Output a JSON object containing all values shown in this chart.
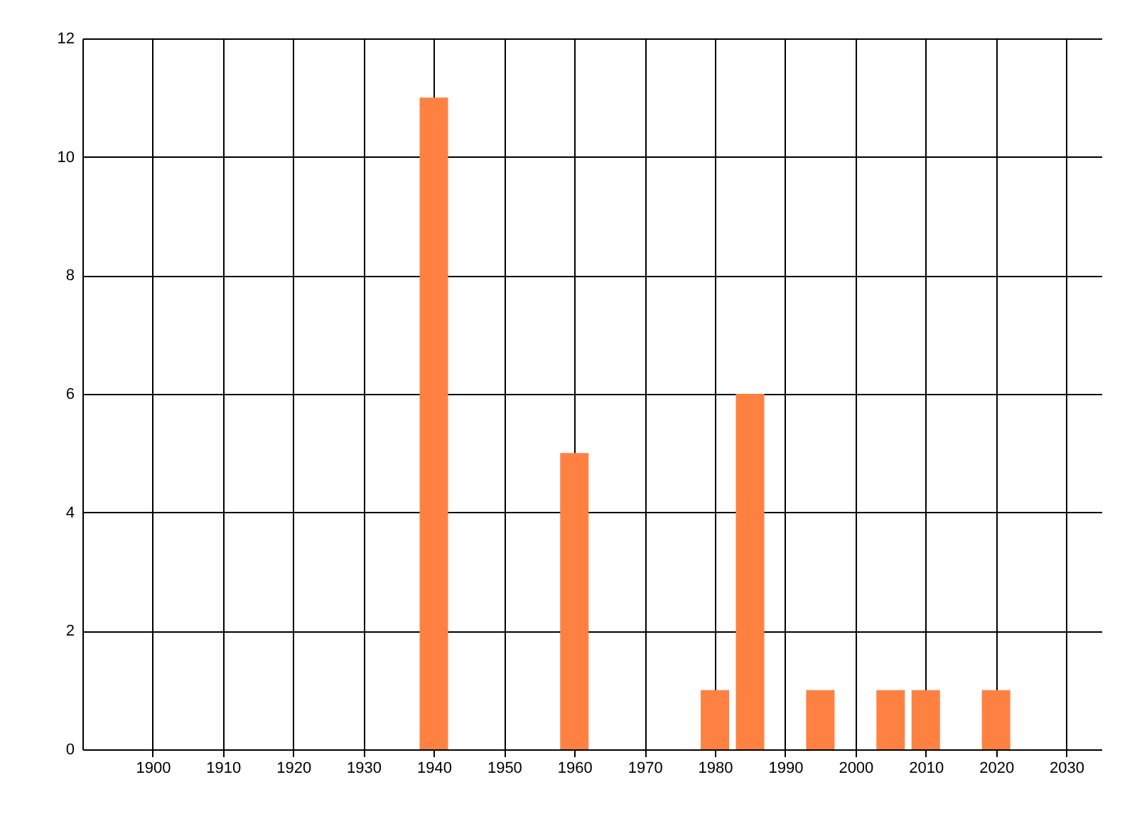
{
  "chart_data": {
    "type": "bar",
    "x": [
      1940,
      1960,
      1980,
      1985,
      1995,
      2005,
      2010,
      2020
    ],
    "values": [
      11,
      5,
      1,
      6,
      1,
      1,
      1,
      1
    ],
    "color": "#ff8142",
    "xlim": [
      1890,
      2035
    ],
    "xticks": [
      1900,
      1910,
      1920,
      1930,
      1940,
      1950,
      1960,
      1970,
      1980,
      1990,
      2000,
      2010,
      2020,
      2030
    ],
    "ylim": [
      0,
      12
    ],
    "yticks": [
      0,
      2,
      4,
      6,
      8,
      10,
      12
    ],
    "grid": true
  }
}
